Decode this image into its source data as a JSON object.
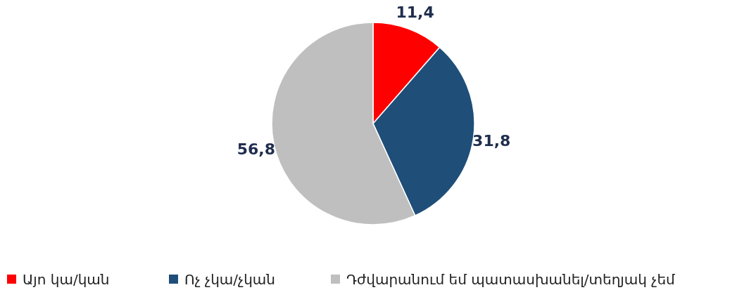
{
  "chart_data": {
    "type": "pie",
    "categories": [
      "Այո կա/կան",
      "Ոչ չկա/չկան",
      "Դժվարանում եմ պատասխանել/տեղյակ չեմ"
    ],
    "values": [
      11.4,
      31.8,
      56.8
    ],
    "colors": [
      "#ff0000",
      "#1f4e79",
      "#bfbfbf"
    ],
    "value_labels": [
      "11,4",
      "31,8",
      "56,8"
    ],
    "legend": "bottom"
  }
}
